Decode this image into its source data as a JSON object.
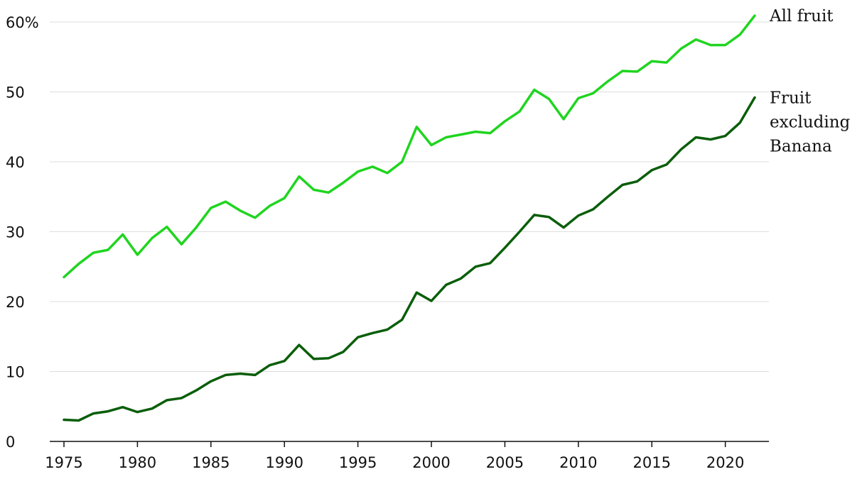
{
  "chart_data": {
    "type": "line",
    "title": "",
    "xlabel": "",
    "ylabel": "",
    "xlim": [
      1975,
      2022
    ],
    "ylim": [
      0,
      60
    ],
    "grid": true,
    "x_ticks": [
      {
        "value": 1975,
        "label": "1975"
      },
      {
        "value": 1980,
        "label": "1980"
      },
      {
        "value": 1985,
        "label": "1985"
      },
      {
        "value": 1990,
        "label": "1990"
      },
      {
        "value": 1995,
        "label": "1995"
      },
      {
        "value": 2000,
        "label": "2000"
      },
      {
        "value": 2005,
        "label": "2005"
      },
      {
        "value": 2010,
        "label": "2010"
      },
      {
        "value": 2015,
        "label": "2015"
      },
      {
        "value": 2020,
        "label": "2020"
      }
    ],
    "y_ticks": [
      {
        "value": 0,
        "label": "0"
      },
      {
        "value": 10,
        "label": "10"
      },
      {
        "value": 20,
        "label": "20"
      },
      {
        "value": 30,
        "label": "30"
      },
      {
        "value": 40,
        "label": "40"
      },
      {
        "value": 50,
        "label": "50"
      },
      {
        "value": 60,
        "label": "60%"
      }
    ],
    "x": [
      1975,
      1976,
      1977,
      1978,
      1979,
      1980,
      1981,
      1982,
      1983,
      1984,
      1985,
      1986,
      1987,
      1988,
      1989,
      1990,
      1991,
      1992,
      1993,
      1994,
      1995,
      1996,
      1997,
      1998,
      1999,
      2000,
      2001,
      2002,
      2003,
      2004,
      2005,
      2006,
      2007,
      2008,
      2009,
      2010,
      2011,
      2012,
      2013,
      2014,
      2015,
      2016,
      2017,
      2018,
      2019,
      2020,
      2021,
      2022
    ],
    "series": [
      {
        "name": "All fruit",
        "color": "#1fd51f",
        "values": [
          23.5,
          25.4,
          27.0,
          27.4,
          29.6,
          26.7,
          29.1,
          30.7,
          28.2,
          30.6,
          33.4,
          34.3,
          33.0,
          32.0,
          33.7,
          34.8,
          37.9,
          36.0,
          35.6,
          37.0,
          38.6,
          39.3,
          38.4,
          40.0,
          45.0,
          42.4,
          43.5,
          43.9,
          44.3,
          44.1,
          45.8,
          47.2,
          50.3,
          49.0,
          46.1,
          49.1,
          49.8,
          51.5,
          53.0,
          52.9,
          54.4,
          54.2,
          56.2,
          57.5,
          56.7,
          56.7,
          58.2,
          60.9
        ]
      },
      {
        "name": "Fruit excluding Banana",
        "label_lines": [
          "Fruit",
          "excluding",
          "Banana"
        ],
        "color": "#0a5e0a",
        "values": [
          3.1,
          3.0,
          4.0,
          4.3,
          4.9,
          4.2,
          4.7,
          5.9,
          6.2,
          7.3,
          8.6,
          9.5,
          9.7,
          9.5,
          10.9,
          11.5,
          13.8,
          11.8,
          11.9,
          12.8,
          14.9,
          15.5,
          16.0,
          17.4,
          21.3,
          20.1,
          22.4,
          23.3,
          25.0,
          25.5,
          27.7,
          30.0,
          32.4,
          32.1,
          30.6,
          32.3,
          33.2,
          35.0,
          36.7,
          37.2,
          38.8,
          39.6,
          41.8,
          43.5,
          43.2,
          43.7,
          45.6,
          49.2
        ]
      }
    ]
  }
}
